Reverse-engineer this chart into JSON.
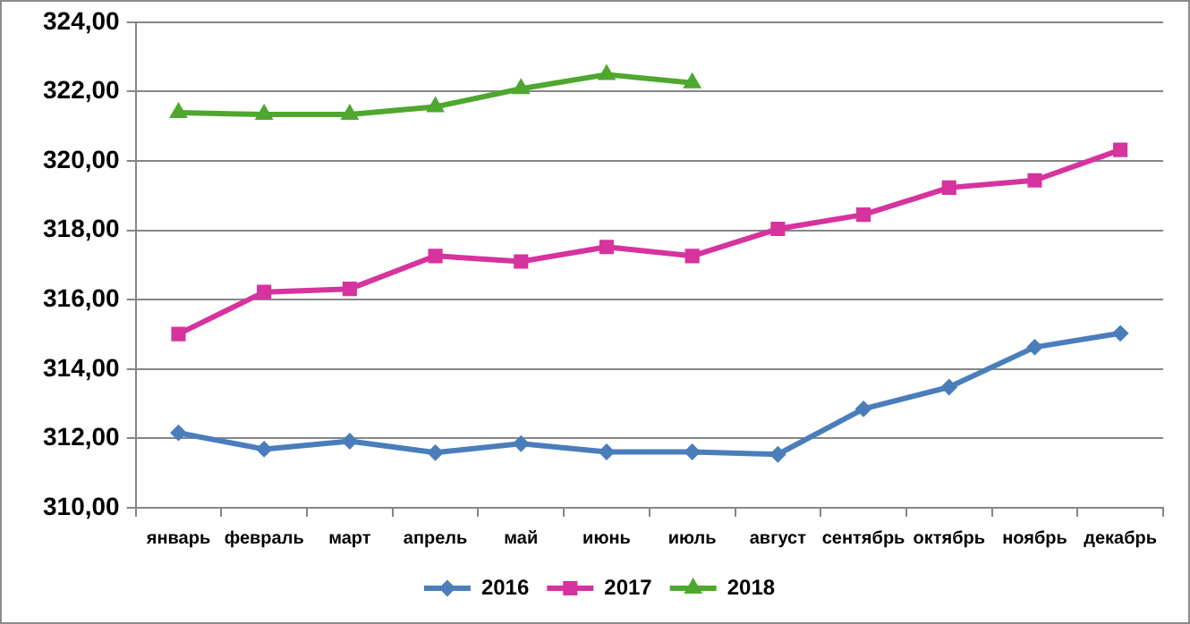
{
  "chart_data": {
    "type": "line",
    "categories": [
      "январь",
      "февраль",
      "март",
      "апрель",
      "май",
      "июнь",
      "июль",
      "август",
      "сентябрь",
      "октябрь",
      "ноябрь",
      "декабрь"
    ],
    "series": [
      {
        "name": "2016",
        "color": "#4a7ebb",
        "marker": "diamond",
        "values": [
          312.16,
          311.69,
          311.92,
          311.59,
          311.85,
          311.61,
          311.61,
          311.54,
          312.85,
          313.48,
          314.63,
          315.03
        ]
      },
      {
        "name": "2017",
        "color": "#d6339e",
        "marker": "square",
        "values": [
          315.01,
          316.22,
          316.31,
          317.26,
          317.1,
          317.52,
          317.26,
          318.04,
          318.45,
          319.23,
          319.44,
          320.32
        ]
      },
      {
        "name": "2018",
        "color": "#4ea72e",
        "marker": "triangle",
        "values": [
          321.39,
          321.34,
          321.34,
          321.56,
          322.08,
          322.49,
          322.25,
          null,
          null,
          null,
          null,
          null
        ]
      }
    ],
    "ylim": [
      310,
      324
    ],
    "yticks": [
      {
        "value": 310,
        "label": "310,00"
      },
      {
        "value": 312,
        "label": "312,00"
      },
      {
        "value": 314,
        "label": "314,00"
      },
      {
        "value": 316,
        "label": "316,00"
      },
      {
        "value": 318,
        "label": "318,00"
      },
      {
        "value": 320,
        "label": "320,00"
      },
      {
        "value": 322,
        "label": "322,00"
      },
      {
        "value": 324,
        "label": "324,00"
      }
    ],
    "grid": "y",
    "legend": "bottom"
  }
}
